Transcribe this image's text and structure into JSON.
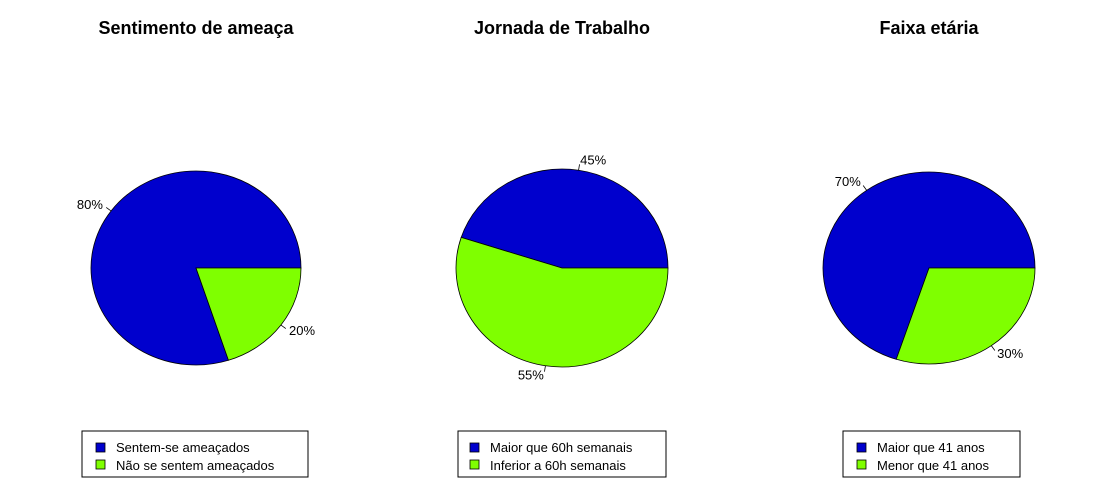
{
  "chart_data": [
    {
      "type": "pie",
      "title": "Sentimento de ameaça",
      "slices": [
        {
          "label": "Sentem-se ameaçados",
          "value": 80,
          "display": "80%",
          "color": "#0000CD"
        },
        {
          "label": "Não se sentem ameaçados",
          "value": 20,
          "display": "20%",
          "color": "#7FFF00"
        }
      ],
      "legend_position": "bottom"
    },
    {
      "type": "pie",
      "title": "Jornada de Trabalho",
      "slices": [
        {
          "label": "Maior que 60h semanais",
          "value": 45,
          "display": "45%",
          "color": "#0000CD"
        },
        {
          "label": "Inferior a 60h semanais",
          "value": 55,
          "display": "55%",
          "color": "#7FFF00"
        }
      ],
      "legend_position": "bottom"
    },
    {
      "type": "pie",
      "title": "Faixa etária",
      "slices": [
        {
          "label": "Maior que 41 anos",
          "value": 70,
          "display": "70%",
          "color": "#0000CD"
        },
        {
          "label": "Menor que 41 anos",
          "value": 30,
          "display": "30%",
          "color": "#7FFF00"
        }
      ],
      "legend_position": "bottom"
    }
  ]
}
